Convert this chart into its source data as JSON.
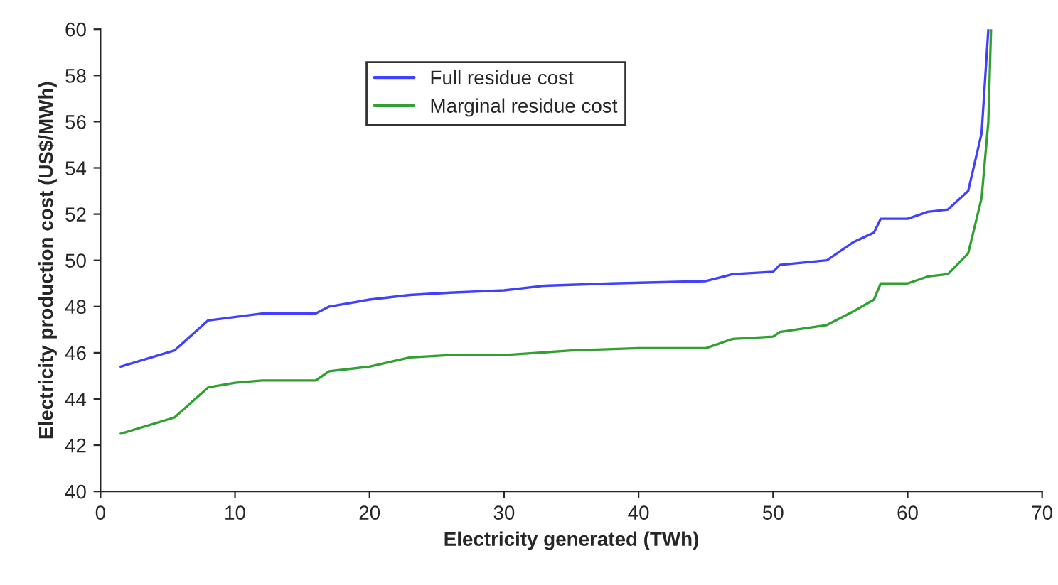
{
  "chart_data": {
    "type": "line",
    "xlabel": "Electricity generated (TWh)",
    "ylabel": "Electricity production cost (US$/MWh)",
    "xlim": [
      0,
      70
    ],
    "xticks": [
      0,
      10,
      20,
      30,
      40,
      50,
      60,
      70
    ],
    "ylim": [
      40,
      60
    ],
    "yticks": [
      40,
      42,
      44,
      46,
      48,
      50,
      52,
      54,
      56,
      58,
      60
    ],
    "grid": false,
    "legend": "top",
    "marker": "none",
    "line_style": "solid",
    "series": [
      {
        "name": "Full residue cost",
        "color": "#4040ff",
        "x": [
          1.5,
          5.5,
          8,
          12,
          16,
          17,
          20,
          23,
          26,
          30,
          33,
          38,
          45,
          47,
          50,
          50.5,
          54,
          56,
          57.5,
          58,
          60,
          61.5,
          63,
          64.5,
          65.5,
          66
        ],
        "values": [
          45.4,
          46.1,
          47.4,
          47.7,
          47.7,
          48.0,
          48.3,
          48.5,
          48.6,
          48.7,
          48.9,
          49.0,
          49.1,
          49.4,
          49.5,
          49.8,
          50.0,
          50.8,
          51.2,
          51.8,
          51.8,
          52.1,
          52.2,
          53.0,
          55.5,
          60
        ]
      },
      {
        "name": "Marginal residue cost",
        "color": "#30a030",
        "x": [
          1.5,
          5.5,
          8,
          10,
          12,
          16,
          17,
          20,
          23,
          26,
          30,
          35,
          40,
          45,
          47,
          50,
          50.5,
          54,
          56,
          57.5,
          58,
          60,
          61.5,
          63,
          64.5,
          65.5,
          66,
          66.2
        ],
        "values": [
          42.5,
          43.2,
          44.5,
          44.7,
          44.8,
          44.8,
          45.2,
          45.4,
          45.8,
          45.9,
          45.9,
          46.1,
          46.2,
          46.2,
          46.6,
          46.7,
          46.9,
          47.2,
          47.8,
          48.3,
          49.0,
          49.0,
          49.3,
          49.4,
          50.3,
          52.7,
          56,
          60
        ]
      }
    ]
  }
}
